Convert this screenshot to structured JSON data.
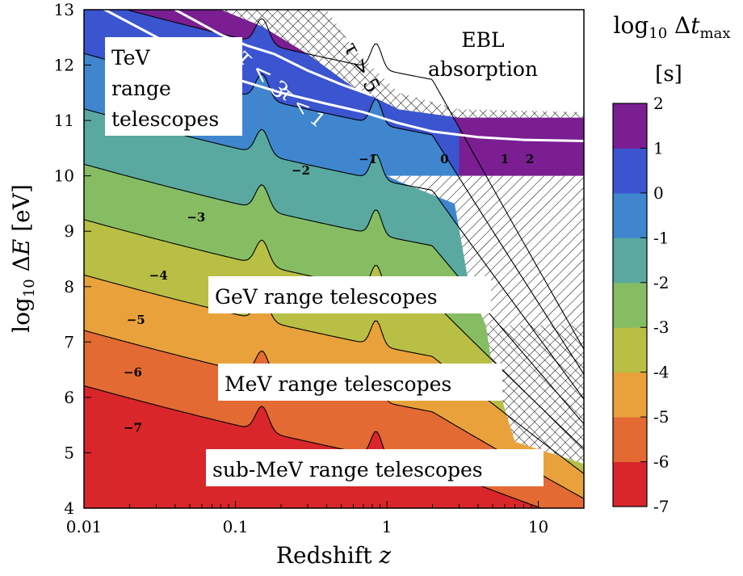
{
  "chart_data": {
    "type": "heatmap",
    "xlabel": "Redshift z",
    "ylabel": "log10 ΔE [eV]",
    "xscale": "log",
    "xlim": [
      0.01,
      20
    ],
    "ylim": [
      4,
      13
    ],
    "x_tick_labels": [
      "0.01",
      "0.1",
      "1",
      "10"
    ],
    "y_tick_labels": [
      "4",
      "5",
      "6",
      "7",
      "8",
      "9",
      "10",
      "11",
      "12",
      "13"
    ],
    "colorbar": {
      "title": "log10 Δt_max",
      "unit": "[s]",
      "levels": [
        -7,
        -6,
        -5,
        -4,
        -3,
        -2,
        -1,
        0,
        1,
        2
      ],
      "tick_labels": [
        "-7",
        "-6",
        "-5",
        "-4",
        "-3",
        "-2",
        "-1",
        "0",
        "1",
        "2"
      ],
      "colors": [
        "#d8262b",
        "#e36a33",
        "#e9a23b",
        "#b9bf45",
        "#86bd63",
        "#5aa9a0",
        "#3f86cf",
        "#3b54cf",
        "#7a1e92"
      ]
    },
    "contour_labels": [
      {
        "text": "−7",
        "z": 0.021,
        "logE": 5.45
      },
      {
        "text": "−6",
        "z": 0.021,
        "logE": 6.45
      },
      {
        "text": "−5",
        "z": 0.022,
        "logE": 7.4
      },
      {
        "text": "−4",
        "z": 0.031,
        "logE": 8.2
      },
      {
        "text": "−3",
        "z": 0.055,
        "logE": 9.25
      },
      {
        "text": "−2",
        "z": 0.27,
        "logE": 10.1
      },
      {
        "text": "−1",
        "z": 0.75,
        "logE": 10.3
      },
      {
        "text": "0",
        "z": 2.4,
        "logE": 10.3
      },
      {
        "text": "1",
        "z": 6.0,
        "logE": 10.3
      },
      {
        "text": "2",
        "z": 8.8,
        "logE": 10.3
      }
    ],
    "region_labels": {
      "tev": [
        "TeV",
        "range",
        "telescopes"
      ],
      "gev": "GeV range telescopes",
      "mev": "MeV range telescopes",
      "submev": "sub-MeV range telescopes",
      "ebl": [
        "EBL",
        "absorption"
      ]
    },
    "tau_labels": [
      "τ > 5",
      "τ < 3",
      "τ < 1"
    ],
    "tau_curves": {
      "tau1": {
        "z": [
          0.01,
          0.1,
          0.2,
          0.4,
          0.7,
          1.2,
          2.0,
          4.0,
          8.0,
          20
        ],
        "logE": [
          13.2,
          11.75,
          11.5,
          11.3,
          11.15,
          10.95,
          10.8,
          10.7,
          10.65,
          10.63
        ]
      },
      "tau3": {
        "z": [
          0.04,
          0.08,
          0.12,
          0.18,
          0.3,
          0.5,
          0.8
        ],
        "logE": [
          13.0,
          12.55,
          12.35,
          12.2,
          11.9,
          11.65,
          11.45
        ]
      }
    }
  }
}
